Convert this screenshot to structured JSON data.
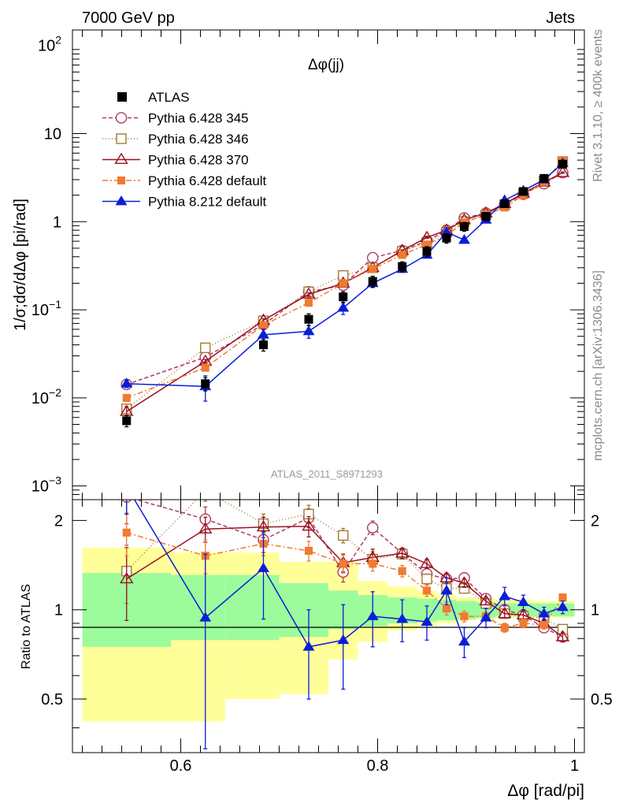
{
  "header": {
    "left": "7000 GeV pp",
    "right": "Jets"
  },
  "side_labels": {
    "top": "Rivet 3.1.10, ≥ 400k events",
    "bottom": "mcplots.cern.ch [arXiv:1306.3436]"
  },
  "chart_data": {
    "type": "scatter",
    "title": "Δφ(jj)",
    "analysis_id": "ATLAS_2011_S8971293",
    "xlabel": "Δφ [rad/pi]",
    "ylabel": "1/σ;dσ/dΔφ [pi/rad]",
    "ratio_ylabel": "Ratio to ATLAS",
    "xlim": [
      0.49,
      1.01
    ],
    "ylim": [
      0.0007,
      150
    ],
    "yscale": "log",
    "ratio_ylim": [
      0.33,
      2.35
    ],
    "x_ticks": [
      {
        "v": 0.6,
        "label": "0.6"
      },
      {
        "v": 0.8,
        "label": "0.8"
      },
      {
        "v": 1.0,
        "label": "1"
      }
    ],
    "y_ticks": [
      {
        "v": 0.001,
        "base": "10",
        "exp": "−3"
      },
      {
        "v": 0.01,
        "base": "10",
        "exp": "−2"
      },
      {
        "v": 0.1,
        "base": "10",
        "exp": "−1"
      },
      {
        "v": 1,
        "base": "1",
        "exp": ""
      },
      {
        "v": 10,
        "base": "10",
        "exp": ""
      },
      {
        "v": 100,
        "base": "10",
        "exp": "2"
      }
    ],
    "ratio_ticks": [
      {
        "v": 0.5,
        "label": "0.5"
      },
      {
        "v": 1,
        "label": "1"
      },
      {
        "v": 2,
        "label": "2"
      }
    ],
    "x": [
      0.545,
      0.625,
      0.684,
      0.73,
      0.765,
      0.795,
      0.825,
      0.85,
      0.87,
      0.888,
      0.91,
      0.929,
      0.948,
      0.969,
      0.988
    ],
    "data": {
      "name": "ATLAS",
      "y": [
        0.0055,
        0.0145,
        0.04,
        0.078,
        0.14,
        0.21,
        0.31,
        0.46,
        0.65,
        0.88,
        1.15,
        1.6,
        2.2,
        3.1,
        4.5
      ],
      "err": [
        0.0008,
        0.0025,
        0.006,
        0.012,
        0.02,
        0.03,
        0.04,
        0.06,
        0.08,
        0.1,
        0.12,
        0.15,
        0.2,
        0.3,
        0.4
      ]
    },
    "bands": {
      "outer": [
        {
          "x0": 0.5,
          "x1": 0.59,
          "lo": 0.42,
          "hi": 1.62
        },
        {
          "x0": 0.59,
          "x1": 0.645,
          "lo": 0.42,
          "hi": 1.56
        },
        {
          "x0": 0.645,
          "x1": 0.7,
          "lo": 0.5,
          "hi": 1.56
        },
        {
          "x0": 0.7,
          "x1": 0.75,
          "lo": 0.52,
          "hi": 1.45
        },
        {
          "x0": 0.75,
          "x1": 0.78,
          "lo": 0.68,
          "hi": 1.45
        },
        {
          "x0": 0.78,
          "x1": 0.81,
          "lo": 0.78,
          "hi": 1.25
        },
        {
          "x0": 0.81,
          "x1": 0.84,
          "lo": 0.85,
          "hi": 1.2
        },
        {
          "x0": 0.84,
          "x1": 0.86,
          "lo": 0.88,
          "hi": 1.16
        },
        {
          "x0": 0.86,
          "x1": 0.88,
          "lo": 0.9,
          "hi": 1.13
        },
        {
          "x0": 0.88,
          "x1": 0.9,
          "lo": 0.92,
          "hi": 1.1
        },
        {
          "x0": 0.9,
          "x1": 0.92,
          "lo": 0.93,
          "hi": 1.09
        },
        {
          "x0": 0.92,
          "x1": 0.94,
          "lo": 0.94,
          "hi": 1.08
        },
        {
          "x0": 0.94,
          "x1": 0.96,
          "lo": 0.94,
          "hi": 1.08
        },
        {
          "x0": 0.96,
          "x1": 0.98,
          "lo": 0.94,
          "hi": 1.07
        },
        {
          "x0": 0.98,
          "x1": 1.0,
          "lo": 0.94,
          "hi": 1.07
        }
      ],
      "inner": [
        {
          "x0": 0.5,
          "x1": 0.59,
          "lo": 0.75,
          "hi": 1.33
        },
        {
          "x0": 0.59,
          "x1": 0.645,
          "lo": 0.79,
          "hi": 1.31
        },
        {
          "x0": 0.645,
          "x1": 0.7,
          "lo": 0.79,
          "hi": 1.31
        },
        {
          "x0": 0.7,
          "x1": 0.75,
          "lo": 0.81,
          "hi": 1.23
        },
        {
          "x0": 0.75,
          "x1": 0.78,
          "lo": 0.86,
          "hi": 1.16
        },
        {
          "x0": 0.78,
          "x1": 0.81,
          "lo": 0.88,
          "hi": 1.12
        },
        {
          "x0": 0.81,
          "x1": 0.84,
          "lo": 0.9,
          "hi": 1.1
        },
        {
          "x0": 0.84,
          "x1": 0.86,
          "lo": 0.91,
          "hi": 1.09
        },
        {
          "x0": 0.86,
          "x1": 0.88,
          "lo": 0.92,
          "hi": 1.08
        },
        {
          "x0": 0.88,
          "x1": 0.9,
          "lo": 0.93,
          "hi": 1.07
        },
        {
          "x0": 0.9,
          "x1": 0.92,
          "lo": 0.94,
          "hi": 1.06
        },
        {
          "x0": 0.92,
          "x1": 0.94,
          "lo": 0.95,
          "hi": 1.05
        },
        {
          "x0": 0.94,
          "x1": 0.96,
          "lo": 0.95,
          "hi": 1.05
        },
        {
          "x0": 0.96,
          "x1": 0.98,
          "lo": 0.95,
          "hi": 1.05
        },
        {
          "x0": 0.98,
          "x1": 1.0,
          "lo": 0.95,
          "hi": 1.05
        }
      ]
    },
    "series": [
      {
        "name": "Pythia 6.428 345",
        "color": "#b03a5b",
        "dash": "5,3",
        "marker": "circle-open",
        "y": [
          0.0142,
          0.029,
          0.068,
          0.16,
          0.19,
          0.39,
          0.47,
          0.6,
          0.8,
          1.1,
          1.25,
          1.55,
          2.05,
          2.7,
          3.6
        ],
        "ratio": [
          2.4,
          2.02,
          1.72,
          2.04,
          1.34,
          1.89,
          1.55,
          1.32,
          1.27,
          1.28,
          1.09,
          1.0,
          0.96,
          0.87,
          0.81
        ],
        "rerr": [
          0.45,
          0.2,
          0.16,
          0.15,
          0.1,
          0.1,
          0.06,
          0.05,
          0.05,
          0.04,
          0.03,
          0.03,
          0.03,
          0.03,
          0.03
        ]
      },
      {
        "name": "Pythia 6.428 346",
        "color": "#a07a35",
        "dash": "1,3",
        "marker": "square-open",
        "y": [
          0.0075,
          0.037,
          0.075,
          0.16,
          0.245,
          0.3,
          0.46,
          0.58,
          0.76,
          1.0,
          1.2,
          1.55,
          2.1,
          2.9,
          4.8
        ],
        "ratio": [
          1.35,
          2.52,
          1.95,
          2.1,
          1.78,
          1.48,
          1.54,
          1.27,
          1.18,
          1.18,
          1.05,
          0.97,
          0.95,
          0.94,
          0.86
        ],
        "rerr": [
          0.3,
          0.2,
          0.15,
          0.15,
          0.1,
          0.09,
          0.06,
          0.05,
          0.05,
          0.04,
          0.03,
          0.03,
          0.03,
          0.03,
          0.03
        ]
      },
      {
        "name": "Pythia 6.428 370",
        "color": "#9b1020",
        "dash": "",
        "marker": "triangle-open",
        "y": [
          0.007,
          0.026,
          0.076,
          0.15,
          0.2,
          0.3,
          0.47,
          0.66,
          0.8,
          1.05,
          1.25,
          1.6,
          2.1,
          2.8,
          3.6
        ],
        "ratio": [
          1.27,
          1.87,
          1.9,
          1.91,
          1.44,
          1.5,
          1.55,
          1.43,
          1.28,
          1.23,
          1.07,
          0.97,
          0.96,
          0.9,
          0.81
        ],
        "rerr": [
          0.35,
          0.18,
          0.15,
          0.15,
          0.1,
          0.1,
          0.06,
          0.05,
          0.05,
          0.04,
          0.03,
          0.03,
          0.03,
          0.03,
          0.03
        ]
      },
      {
        "name": "Pythia 6.428 default",
        "color": "#f07a30",
        "dash": "7,3,2,3",
        "marker": "square-filled",
        "y": [
          0.01,
          0.022,
          0.067,
          0.12,
          0.2,
          0.29,
          0.42,
          0.55,
          0.7,
          0.98,
          1.2,
          1.45,
          2.0,
          2.8,
          5.0
        ],
        "ratio": [
          1.82,
          1.52,
          1.67,
          1.58,
          1.43,
          1.43,
          1.35,
          1.16,
          1.01,
          0.95,
          0.95,
          0.87,
          0.9,
          0.89,
          1.1
        ],
        "rerr": [
          0.3,
          0.2,
          0.15,
          0.12,
          0.1,
          0.08,
          0.06,
          0.05,
          0.05,
          0.04,
          0.03,
          0.03,
          0.03,
          0.03,
          0.03
        ]
      },
      {
        "name": "Pythia 8.212 default",
        "color": "#0a1ed8",
        "dash": "",
        "marker": "triangle-filled",
        "y": [
          0.0145,
          0.0135,
          0.052,
          0.057,
          0.105,
          0.2,
          0.29,
          0.42,
          0.76,
          0.62,
          1.05,
          1.75,
          2.25,
          3.0,
          4.6
        ],
        "ratio": [
          2.6,
          0.94,
          1.38,
          0.75,
          0.79,
          0.95,
          0.93,
          0.91,
          1.16,
          0.78,
          0.94,
          1.11,
          1.06,
          0.97,
          1.02
        ],
        "rerr": [
          0.5,
          0.6,
          0.45,
          0.25,
          0.25,
          0.2,
          0.15,
          0.12,
          0.12,
          0.09,
          0.07,
          0.08,
          0.06,
          0.05,
          0.05
        ]
      }
    ]
  }
}
